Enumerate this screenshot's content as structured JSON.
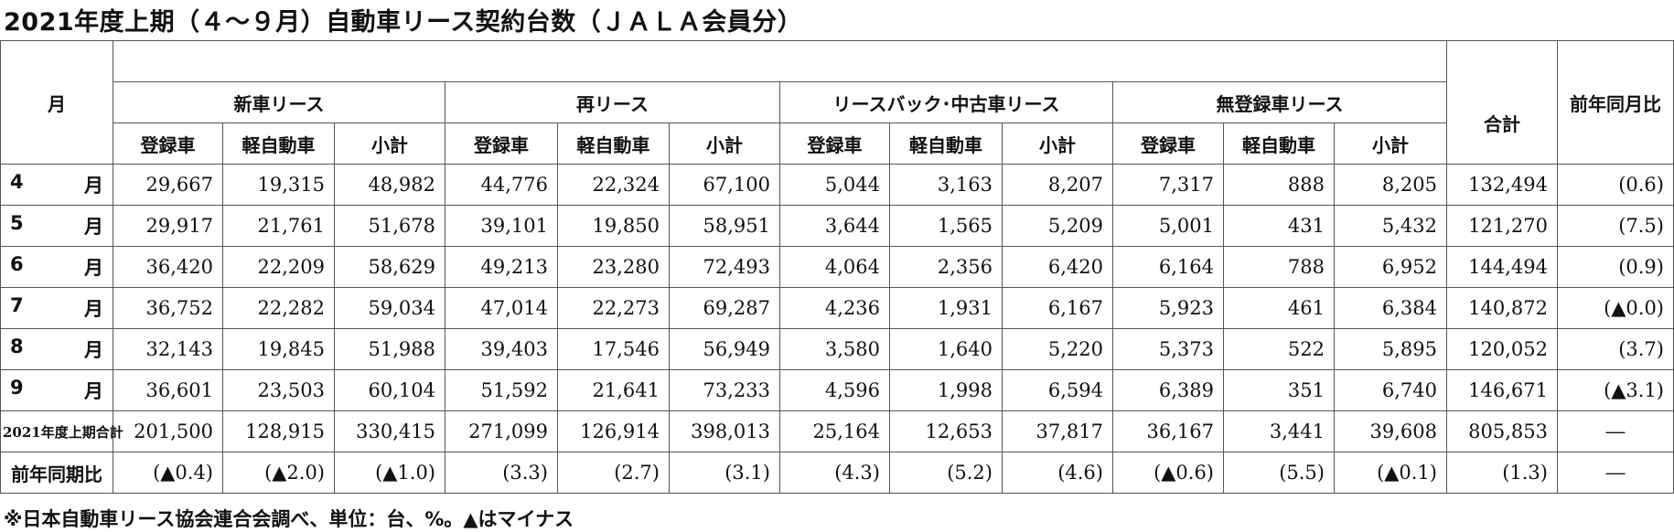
{
  "title": "2021年度上期（４～９月）自動車リース契約台数（ＪＡＬＡ会員分）",
  "note": "※日本自動車リース協会連合会調べ、単位：台、%。▲はマイナス",
  "header": {
    "month": "月",
    "groups": [
      "新車リース",
      "再リース",
      "リースバック･中古車リース",
      "無登録車リース"
    ],
    "sub": [
      "登録車",
      "軽自動車",
      "小計"
    ],
    "total": "合計",
    "yoy": "前年同月比"
  },
  "rows": [
    {
      "m1": "4",
      "m2": "月",
      "v": [
        "29,667",
        "19,315",
        "48,982",
        "44,776",
        "22,324",
        "67,100",
        "5,044",
        "3,163",
        "8,207",
        "7,317",
        "888",
        "8,205",
        "132,494",
        "(0.6)"
      ]
    },
    {
      "m1": "5",
      "m2": "月",
      "v": [
        "29,917",
        "21,761",
        "51,678",
        "39,101",
        "19,850",
        "58,951",
        "3,644",
        "1,565",
        "5,209",
        "5,001",
        "431",
        "5,432",
        "121,270",
        "(7.5)"
      ]
    },
    {
      "m1": "6",
      "m2": "月",
      "v": [
        "36,420",
        "22,209",
        "58,629",
        "49,213",
        "23,280",
        "72,493",
        "4,064",
        "2,356",
        "6,420",
        "6,164",
        "788",
        "6,952",
        "144,494",
        "(0.9)"
      ]
    },
    {
      "m1": "7",
      "m2": "月",
      "v": [
        "36,752",
        "22,282",
        "59,034",
        "47,014",
        "22,273",
        "69,287",
        "4,236",
        "1,931",
        "6,167",
        "5,923",
        "461",
        "6,384",
        "140,872",
        "(▲0.0)"
      ]
    },
    {
      "m1": "8",
      "m2": "月",
      "v": [
        "32,143",
        "19,845",
        "51,988",
        "39,403",
        "17,546",
        "56,949",
        "3,580",
        "1,640",
        "5,220",
        "5,373",
        "522",
        "5,895",
        "120,052",
        "(3.7)"
      ]
    },
    {
      "m1": "9",
      "m2": "月",
      "v": [
        "36,601",
        "23,503",
        "60,104",
        "51,592",
        "21,641",
        "73,233",
        "4,596",
        "1,998",
        "6,594",
        "6,389",
        "351",
        "6,740",
        "146,671",
        "(▲3.1)"
      ]
    }
  ],
  "total_row": {
    "label": "2021年度上期合計",
    "v": [
      "201,500",
      "128,915",
      "330,415",
      "271,099",
      "126,914",
      "398,013",
      "25,164",
      "12,653",
      "37,817",
      "36,167",
      "3,441",
      "39,608",
      "805,853",
      "―"
    ]
  },
  "yoy_row": {
    "label": "前年同期比",
    "v": [
      "(▲0.4)",
      "(▲2.0)",
      "(▲1.0)",
      "(3.3)",
      "(2.7)",
      "(3.1)",
      "(4.3)",
      "(5.2)",
      "(4.6)",
      "(▲0.6)",
      "(5.5)",
      "(▲0.1)",
      "(1.3)",
      "―"
    ]
  }
}
